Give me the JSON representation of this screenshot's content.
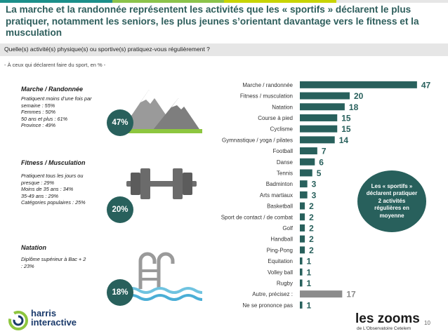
{
  "header": {
    "title": "La marche et la randonnée représentent les activités que les « sportifs » déclarent le plus pratiquer, notamment les seniors, les plus jeunes s’orientant davantage vers le fitness et la musculation",
    "question": "Quelle(s) activité(s) physique(s) ou sportive(s) pratiquez-vous régulièrement ?",
    "base": "- À ceux qui déclarent faire du sport, en % -"
  },
  "segments": [
    {
      "title": "Marche / Randonnée",
      "lines": [
        "Pratiquent moins d’une fois par",
        "semaine : 55%",
        "Femmes : 50%",
        "50 ans et plus : 61%",
        "Province : 49%"
      ],
      "pct": "47%"
    },
    {
      "title": "Fitness / Musculation",
      "lines": [
        "Pratiquent tous les jours ou",
        "presque : 29%",
        "Moins de 35 ans : 34%",
        "35-49 ans : 29%",
        "Catégories populaires : 25%"
      ],
      "pct": "20%"
    },
    {
      "title": "Natation",
      "lines": [
        "Diplôme supérieur à Bac + 2",
        ": 23%"
      ],
      "pct": "18%"
    }
  ],
  "bubble": {
    "text": "Les « sportifs » déclarent pratiquer 2 activités régulières en moyenne"
  },
  "chart_data": {
    "type": "bar",
    "orientation": "horizontal",
    "categories": [
      "Marche / randonnée",
      "Fitness / musculation",
      "Natation",
      "Course à pied",
      "Cyclisme",
      "Gymnastique / yoga / pilates",
      "Football",
      "Danse",
      "Tennis",
      "Badminton",
      "Arts martiaux",
      "Basketball",
      "Sport de contact / de combat",
      "Golf",
      "Handball",
      "Ping-Pong",
      "Equitation",
      "Volley ball",
      "Rugby",
      "Autre, précisez :",
      "Ne se prononce pas"
    ],
    "values": [
      47,
      20,
      18,
      15,
      15,
      14,
      7,
      6,
      5,
      3,
      3,
      2,
      2,
      2,
      2,
      2,
      1,
      1,
      1,
      17,
      1
    ],
    "unit": "%",
    "colors": {
      "main": "#28605c",
      "other": "#8c8c8c",
      "label_main": "#28605c",
      "label_other": "#8c8c8c"
    }
  },
  "colors": {
    "title": "#2e5e5c",
    "accent": "#28605c",
    "topbar": [
      "#1b8f8a",
      "#8bc34a",
      "#c8d400",
      "#e6e6e6"
    ]
  },
  "footer": {
    "harris": [
      "harris",
      "interactive"
    ],
    "zooms": "les zooms",
    "zooms_sub": "de L'Observatoire Cetelem",
    "page": "10"
  }
}
